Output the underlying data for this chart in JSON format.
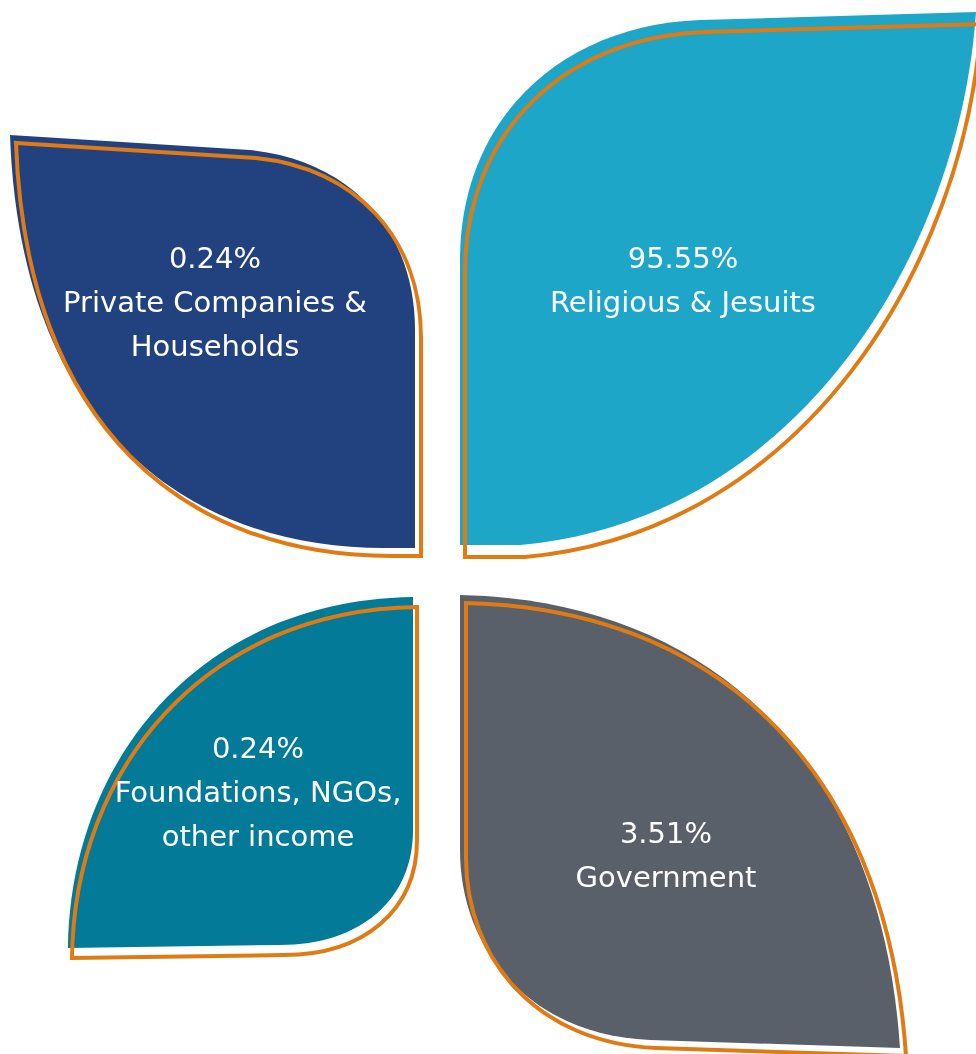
{
  "chart_data": {
    "type": "other",
    "categories": [
      "Private Companies & Households",
      "Religious & Jesuits",
      "Foundations, NGOs, other income",
      "Government"
    ],
    "values": [
      0.24,
      95.55,
      0.24,
      3.51
    ],
    "value_labels": [
      "0.24%",
      "95.55%",
      "0.24%",
      "3.51%"
    ],
    "colors": [
      "#22427f",
      "#1ea6c9",
      "#027a98",
      "#5a606a"
    ]
  }
}
